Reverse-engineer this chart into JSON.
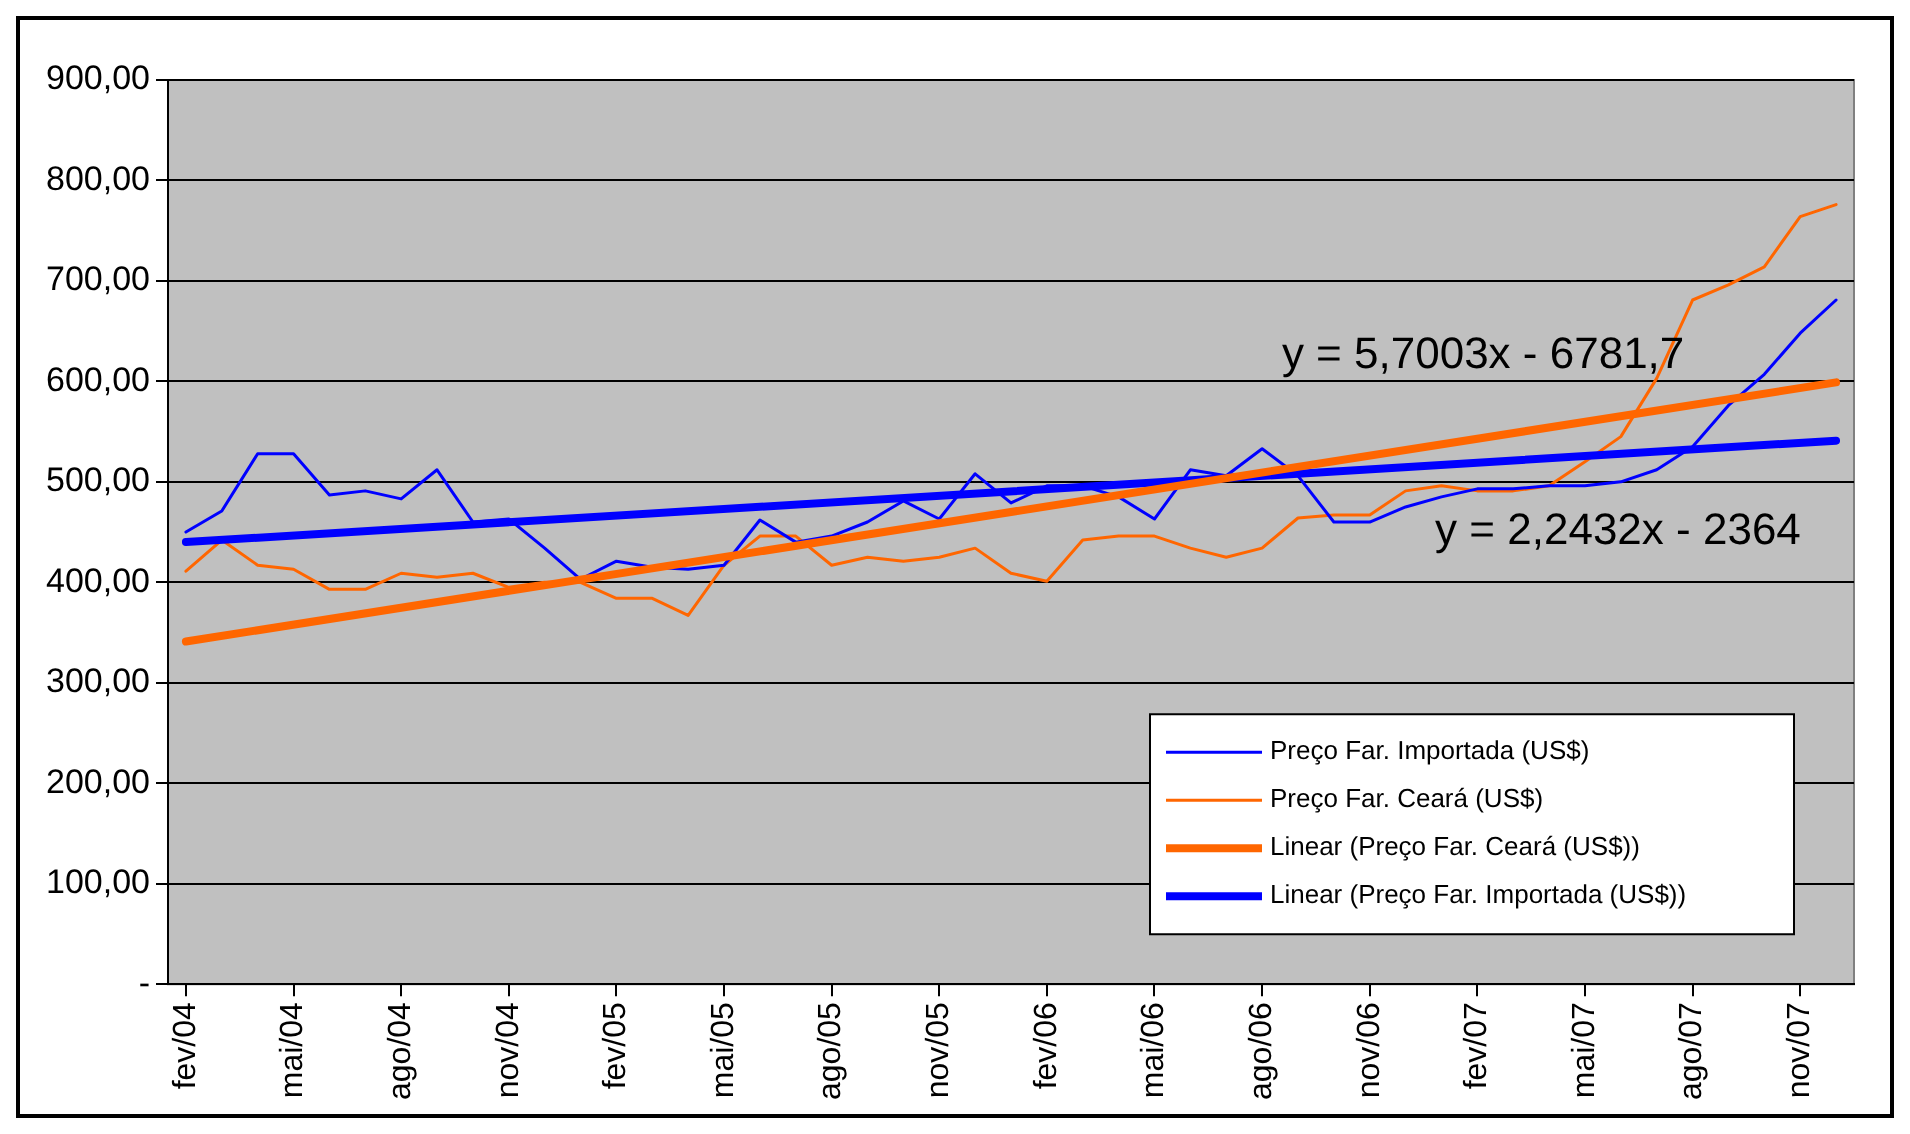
{
  "chart_data": {
    "type": "line",
    "x": [
      "2004-02",
      "2004-03",
      "2004-04",
      "2004-05",
      "2004-06",
      "2004-07",
      "2004-08",
      "2004-09",
      "2004-10",
      "2004-11",
      "2004-12",
      "2005-01",
      "2005-02",
      "2005-03",
      "2005-04",
      "2005-05",
      "2005-06",
      "2005-07",
      "2005-08",
      "2005-09",
      "2005-10",
      "2005-11",
      "2005-12",
      "2006-01",
      "2006-02",
      "2006-03",
      "2006-04",
      "2006-05",
      "2006-06",
      "2006-07",
      "2006-08",
      "2006-09",
      "2006-10",
      "2006-11",
      "2006-12",
      "2007-01",
      "2007-02",
      "2007-03",
      "2007-04",
      "2007-05",
      "2007-06",
      "2007-07",
      "2007-08",
      "2007-09",
      "2007-10",
      "2007-11",
      "2007-12"
    ],
    "series": [
      {
        "name": "Preço Far. Importada (US$)",
        "color": "#0000ff",
        "values": [
          450,
          471,
          528,
          528,
          487,
          491,
          483,
          512,
          460,
          463,
          434,
          403,
          421,
          415,
          413,
          417,
          462,
          440,
          446,
          460,
          481,
          463,
          508,
          479,
          496,
          496,
          485,
          463,
          512,
          506,
          533,
          506,
          460,
          460,
          475,
          485,
          493,
          493,
          496,
          496,
          500,
          512,
          535,
          576,
          607,
          648,
          681
        ]
      },
      {
        "name": "Preço Far. Ceará (US$)",
        "color": "#ff6600",
        "values": [
          411,
          442,
          417,
          413,
          393,
          393,
          409,
          405,
          409,
          395,
          400,
          400,
          384,
          384,
          367,
          417,
          446,
          446,
          417,
          425,
          421,
          425,
          434,
          409,
          401,
          442,
          446,
          446,
          434,
          425,
          434,
          464,
          467,
          467,
          491,
          496,
          491,
          491,
          496,
          520,
          545,
          603,
          681,
          696,
          714,
          764,
          776
        ]
      },
      {
        "name": "Linear (Preço Far. Ceará (US$))",
        "type": "line",
        "color": "#ff6600",
        "x": [
          "2004-02",
          "2007-12"
        ],
        "values": [
          341,
          599
        ]
      },
      {
        "name": "Linear (Preço Far. Importada (US$))",
        "type": "line",
        "color": "#0000ff",
        "x": [
          "2004-02",
          "2007-12"
        ],
        "values": [
          440,
          541
        ]
      }
    ],
    "xlim": [
      "2004-01-16",
      "2007-12-16"
    ],
    "xticks": [
      {
        "value": "2004-02",
        "label": "fev/04"
      },
      {
        "value": "2004-05",
        "label": "mai/04"
      },
      {
        "value": "2004-08",
        "label": "ago/04"
      },
      {
        "value": "2004-11",
        "label": "nov/04"
      },
      {
        "value": "2005-02",
        "label": "fev/05"
      },
      {
        "value": "2005-05",
        "label": "mai/05"
      },
      {
        "value": "2005-08",
        "label": "ago/05"
      },
      {
        "value": "2005-11",
        "label": "nov/05"
      },
      {
        "value": "2006-02",
        "label": "fev/06"
      },
      {
        "value": "2006-05",
        "label": "mai/06"
      },
      {
        "value": "2006-08",
        "label": "ago/06"
      },
      {
        "value": "2006-11",
        "label": "nov/06"
      },
      {
        "value": "2007-02",
        "label": "fev/07"
      },
      {
        "value": "2007-05",
        "label": "mai/07"
      },
      {
        "value": "2007-08",
        "label": "ago/07"
      },
      {
        "value": "2007-11",
        "label": "nov/07"
      }
    ],
    "ylim": [
      0,
      900
    ],
    "yticks": [
      {
        "value": 0,
        "label": "-"
      },
      {
        "value": 100,
        "label": "100,00"
      },
      {
        "value": 200,
        "label": "200,00"
      },
      {
        "value": 300,
        "label": "300,00"
      },
      {
        "value": 400,
        "label": "400,00"
      },
      {
        "value": 500,
        "label": "500,00"
      },
      {
        "value": 600,
        "label": "600,00"
      },
      {
        "value": 700,
        "label": "700,00"
      },
      {
        "value": 800,
        "label": "800,00"
      },
      {
        "value": 900,
        "label": "900,00"
      }
    ],
    "annotations": [
      "y = 5,7003x - 6781,7",
      "y = 2,2432x - 2364"
    ],
    "grid": "y",
    "legend": "bottom right",
    "marker": "none",
    "line_style": "solid"
  }
}
